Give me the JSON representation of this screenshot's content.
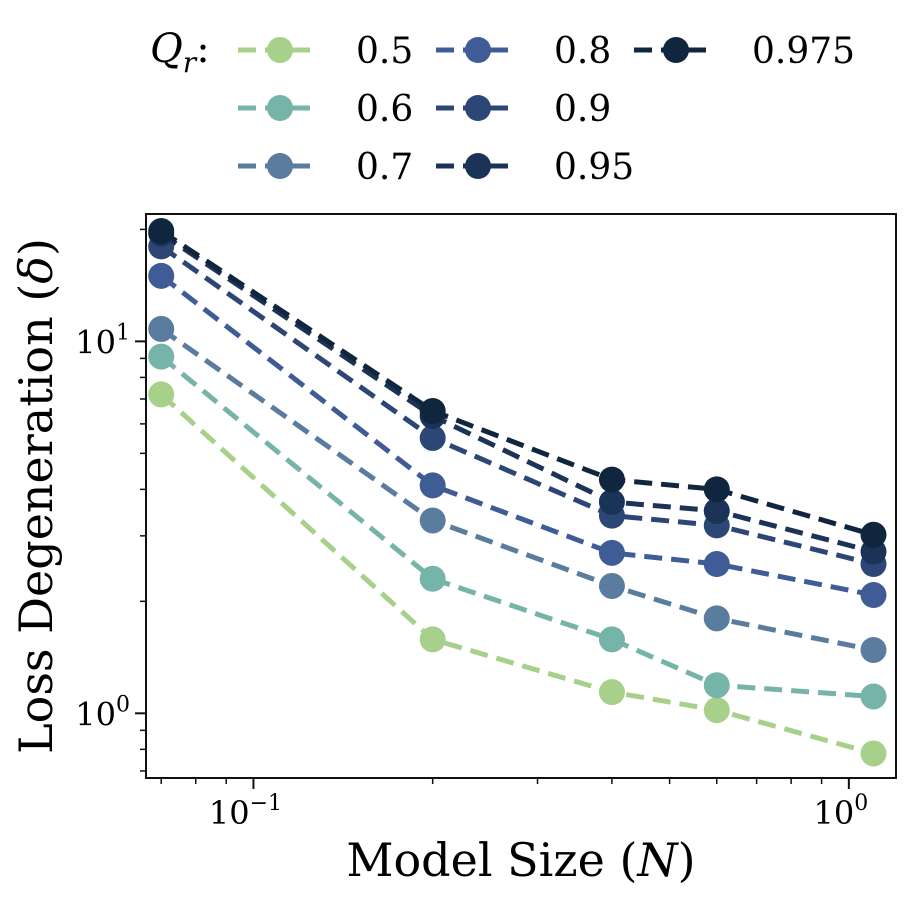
{
  "chart_data": {
    "type": "line",
    "x_scale": "log",
    "y_scale": "log",
    "xlabel_text": "Model Size (",
    "xlabel_var": "N",
    "xlabel_close": ")",
    "ylabel_text": "Loss Degeneration (",
    "ylabel_var": "δ",
    "ylabel_close": ")",
    "xlim": [
      0.066,
      1.2
    ],
    "ylim": [
      0.67,
      22
    ],
    "x_ticks": [
      {
        "value": 0.1,
        "base": "10",
        "exp": "−1"
      },
      {
        "value": 1.0,
        "base": "10",
        "exp": "0"
      }
    ],
    "y_ticks": [
      {
        "value": 1.0,
        "base": "10",
        "exp": "0"
      },
      {
        "value": 10.0,
        "base": "10",
        "exp": "1"
      }
    ],
    "legend": {
      "title_var": "Q",
      "title_sub": "r",
      "title_colon": ":",
      "placement": "top"
    },
    "x": [
      0.07,
      0.2,
      0.4,
      0.6,
      1.1
    ],
    "series": [
      {
        "name": "0.5",
        "color": "#a7d08b",
        "values": [
          7.2,
          1.58,
          1.14,
          1.02,
          0.78
        ]
      },
      {
        "name": "0.6",
        "color": "#76b3a8",
        "values": [
          9.1,
          2.3,
          1.58,
          1.19,
          1.11
        ]
      },
      {
        "name": "0.7",
        "color": "#5a7c9e",
        "values": [
          10.8,
          3.3,
          2.2,
          1.8,
          1.48
        ]
      },
      {
        "name": "0.8",
        "color": "#3f5c96",
        "values": [
          15.0,
          4.1,
          2.7,
          2.52,
          2.08
        ]
      },
      {
        "name": "0.9",
        "color": "#2c4675",
        "values": [
          18.0,
          5.5,
          3.4,
          3.2,
          2.52
        ]
      },
      {
        "name": "0.95",
        "color": "#1b3357",
        "values": [
          19.5,
          6.3,
          3.7,
          3.5,
          2.72
        ]
      },
      {
        "name": "0.975",
        "color": "#10263f",
        "values": [
          19.8,
          6.5,
          4.25,
          4.0,
          3.02
        ]
      }
    ]
  }
}
